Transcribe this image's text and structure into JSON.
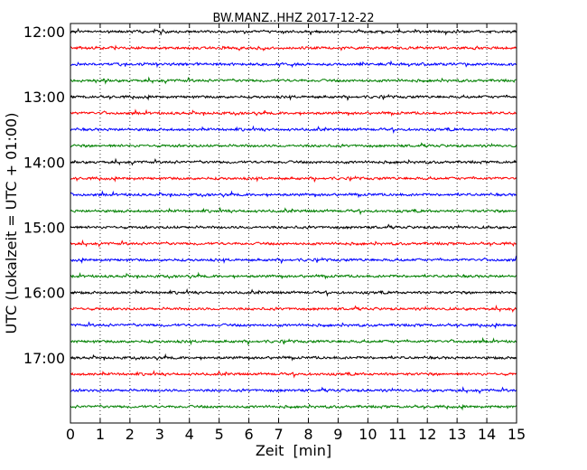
{
  "chart_data": {
    "type": "line",
    "title": "BW.MANZ..HHZ 2017-12-22",
    "xlabel": "Zeit  [min]",
    "ylabel": "UTC (Lokalzeit = UTC + 01:00)",
    "xlim": [
      0,
      15
    ],
    "x_ticks": [
      "0",
      "1",
      "2",
      "3",
      "4",
      "5",
      "6",
      "7",
      "8",
      "9",
      "10",
      "11",
      "12",
      "13",
      "14",
      "15"
    ],
    "y_ticks": [
      "12:00",
      "13:00",
      "14:00",
      "15:00",
      "16:00",
      "17:00"
    ],
    "grid": "vertical dotted lines at each minute",
    "line_start_times": [
      "12:00",
      "12:15",
      "12:30",
      "12:45",
      "13:00",
      "13:15",
      "13:30",
      "13:45",
      "14:00",
      "14:15",
      "14:30",
      "14:45",
      "15:00",
      "15:15",
      "15:30",
      "15:45",
      "16:00",
      "16:15",
      "16:30",
      "16:45",
      "17:00",
      "17:15",
      "17:30",
      "17:45"
    ],
    "line_colors": [
      "#000000",
      "#ff0000",
      "#0000ff",
      "#008000"
    ],
    "ylim_minutes_after_start": [
      -7.5,
      360
    ]
  }
}
